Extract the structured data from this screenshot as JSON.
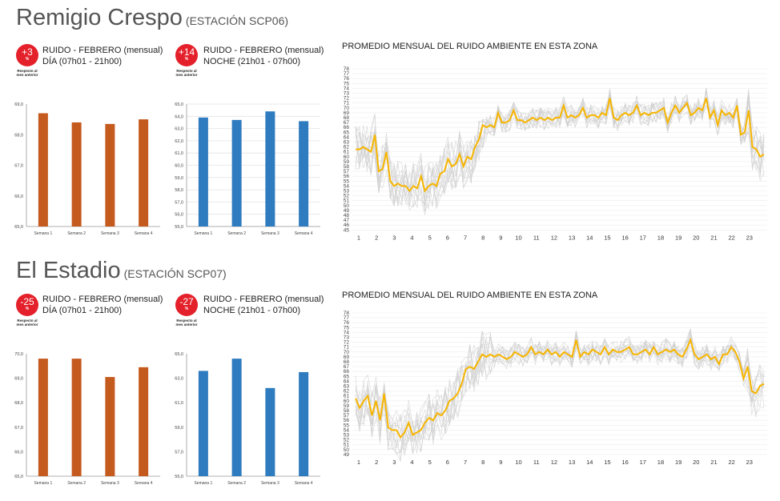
{
  "stations": [
    {
      "name": "Remigio Crespo",
      "code": "(ESTACIÓN SCP06)",
      "day_badge": {
        "value": "+3",
        "pct": "%"
      },
      "night_badge": {
        "value": "+14",
        "pct": "%"
      },
      "day_label_1": "RUIDO - FEBRERO (mensual)",
      "day_label_2": "DÍA (07h01 - 21h00)",
      "night_label_1": "RUIDO - FEBRERO (mensual)",
      "night_label_2": "NOCHE (21h01 - 07h00)",
      "monthly_title": "PROMEDIO MENSUAL DEL RUIDO AMBIENTE EN ESTA ZONA"
    },
    {
      "name": "El Estadio",
      "code": "(ESTACIÓN SCP07)",
      "day_badge": {
        "value": "-25",
        "pct": "%"
      },
      "night_badge": {
        "value": "-27",
        "pct": "%"
      },
      "day_label_1": "RUIDO - FEBRERO (mensual)",
      "day_label_2": "DÍA (07h01 - 21h00)",
      "night_label_1": "RUIDO - FEBRERO (mensual)",
      "night_label_2": "NOCHE (21h01 - 07h00)",
      "monthly_title": "PROMEDIO MENSUAL DEL RUIDO AMBIENTE EN ESTA ZONA"
    }
  ],
  "badge_note_1": "Respecto al",
  "badge_note_2": "mes anterior",
  "colors": {
    "day_bar": "#c55a1e",
    "night_bar": "#2e7bbf",
    "badge": "#e4202a",
    "line": "#f7b500",
    "faint": "#cfcfcf"
  },
  "chart_data": [
    {
      "type": "bar",
      "station": "SCP06",
      "period": "day",
      "categories": [
        "Semana 1",
        "Semana 2",
        "Semana 3",
        "Semana 4"
      ],
      "values": [
        68.7,
        68.4,
        68.35,
        68.5
      ],
      "ylim": [
        65,
        69
      ],
      "yticks": [
        "65,0",
        "66,0",
        "67,0",
        "68,0",
        "69,0"
      ],
      "ytick_values": [
        65,
        66,
        67,
        68,
        69
      ]
    },
    {
      "type": "bar",
      "station": "SCP06",
      "period": "night",
      "categories": [
        "Semana 1",
        "Semana 2",
        "Semana 3",
        "Semana 4"
      ],
      "values": [
        63.9,
        63.7,
        64.4,
        63.6
      ],
      "ylim": [
        55,
        65
      ],
      "yticks": [
        "55,0",
        "56,0",
        "57,0",
        "58,0",
        "59,0",
        "60,0",
        "61,0",
        "62,0",
        "63,0",
        "64,0",
        "65,0"
      ],
      "ytick_values": [
        55,
        56,
        57,
        58,
        59,
        60,
        61,
        62,
        63,
        64,
        65
      ]
    },
    {
      "type": "line",
      "station": "SCP06",
      "x_ticks": [
        "1",
        "2",
        "3",
        "4",
        "5",
        "6",
        "7",
        "8",
        "9",
        "10",
        "11",
        "12",
        "13",
        "14",
        "15",
        "16",
        "17",
        "18",
        "19",
        "20",
        "21",
        "22",
        "23"
      ],
      "ylim": [
        45,
        78
      ],
      "y_ticks": [
        45,
        46,
        47,
        48,
        49,
        50,
        51,
        52,
        53,
        54,
        55,
        56,
        57,
        58,
        59,
        60,
        61,
        62,
        63,
        64,
        65,
        66,
        67,
        68,
        69,
        70,
        71,
        72,
        73,
        74,
        75,
        76,
        77,
        78
      ],
      "series": [
        {
          "values": [
            61.5,
            61.5,
            62.0,
            61.5,
            61.0,
            64.5,
            57.0,
            57.5,
            61.0,
            55.0,
            54.0,
            54.5,
            54.0,
            54.0,
            53.0,
            54.0,
            53.5,
            56.0,
            53.0,
            54.0,
            54.5,
            54.0,
            56.5,
            57.0,
            59.5,
            58.0,
            58.5,
            60.5,
            58.0,
            60.0,
            59.5,
            62.0,
            63.5,
            66.5,
            66.0,
            66.5,
            66.0,
            69.0,
            67.0,
            67.0,
            67.5,
            69.5,
            67.5,
            67.5,
            67.0,
            67.5,
            68.0,
            67.5,
            68.0,
            67.5,
            68.0,
            67.5,
            68.0,
            68.0,
            70.5,
            68.0,
            68.5,
            68.0,
            68.5,
            70.0,
            68.0,
            68.5,
            68.5,
            68.0,
            69.0,
            68.5,
            72.0,
            68.0,
            67.5,
            68.5,
            69.0,
            68.5,
            69.0,
            70.5,
            68.5,
            69.0,
            68.5,
            69.0,
            69.0,
            69.5,
            70.0,
            67.0,
            69.0,
            70.5,
            69.0,
            70.0,
            71.0,
            68.5,
            69.0,
            70.0,
            69.5,
            72.0,
            68.0,
            69.5,
            66.5,
            69.5,
            68.5,
            69.0,
            68.0,
            70.5,
            64.5,
            65.0,
            69.5,
            62.0,
            61.5,
            60.0,
            60.5
          ]
        }
      ]
    },
    {
      "type": "bar",
      "station": "SCP07",
      "period": "day",
      "categories": [
        "Semana 1",
        "Semana 2",
        "Semana 3",
        "Semana 4"
      ],
      "values": [
        69.8,
        69.8,
        69.05,
        69.45
      ],
      "ylim": [
        65,
        70
      ],
      "yticks": [
        "65,0",
        "66,0",
        "67,0",
        "68,0",
        "69,0",
        "70,0"
      ],
      "ytick_values": [
        65,
        66,
        67,
        68,
        69,
        70
      ]
    },
    {
      "type": "bar",
      "station": "SCP07",
      "period": "night",
      "categories": [
        "Semana 1",
        "Semana 2",
        "Semana 3",
        "Semana 4"
      ],
      "values": [
        63.6,
        64.6,
        62.2,
        63.5
      ],
      "ylim": [
        55,
        65
      ],
      "yticks": [
        "55,0",
        "57,0",
        "59,0",
        "61,0",
        "63,0",
        "65,0"
      ],
      "ytick_values": [
        55,
        57,
        59,
        61,
        63,
        65
      ]
    },
    {
      "type": "line",
      "station": "SCP07",
      "x_ticks": [
        "1",
        "2",
        "3",
        "4",
        "5",
        "6",
        "7",
        "8",
        "9",
        "10",
        "11",
        "12",
        "13",
        "14",
        "15",
        "16",
        "17",
        "18",
        "19",
        "20",
        "21",
        "22",
        "23"
      ],
      "ylim": [
        49,
        78
      ],
      "y_ticks": [
        49,
        50,
        51,
        52,
        53,
        54,
        55,
        56,
        57,
        58,
        59,
        60,
        61,
        62,
        63,
        64,
        65,
        66,
        67,
        68,
        69,
        70,
        71,
        72,
        73,
        74,
        75,
        76,
        77,
        78
      ],
      "series": [
        {
          "values": [
            60.5,
            58.5,
            60.0,
            61.0,
            57.0,
            60.0,
            56.0,
            61.5,
            54.5,
            54.0,
            54.0,
            52.5,
            53.5,
            55.5,
            53.0,
            53.5,
            54.0,
            55.5,
            56.5,
            56.0,
            57.5,
            57.0,
            58.0,
            60.0,
            60.5,
            61.5,
            63.5,
            66.5,
            67.0,
            66.5,
            68.0,
            69.5,
            69.0,
            69.5,
            69.0,
            69.5,
            69.0,
            68.5,
            69.0,
            70.0,
            69.5,
            69.0,
            69.5,
            71.0,
            69.5,
            70.0,
            69.5,
            70.5,
            69.5,
            70.0,
            69.0,
            70.0,
            69.5,
            69.0,
            72.5,
            69.0,
            70.0,
            69.5,
            70.5,
            70.0,
            69.5,
            71.0,
            69.5,
            70.5,
            70.0,
            70.0,
            70.5,
            71.0,
            69.5,
            69.5,
            70.0,
            70.5,
            69.5,
            71.0,
            69.5,
            70.0,
            70.5,
            70.0,
            70.5,
            69.5,
            69.0,
            70.5,
            72.5,
            69.5,
            68.5,
            69.0,
            69.5,
            68.5,
            69.0,
            67.5,
            69.5,
            69.5,
            71.0,
            70.0,
            68.0,
            64.5,
            67.0,
            62.0,
            61.5,
            63.0,
            63.5
          ]
        }
      ]
    }
  ]
}
